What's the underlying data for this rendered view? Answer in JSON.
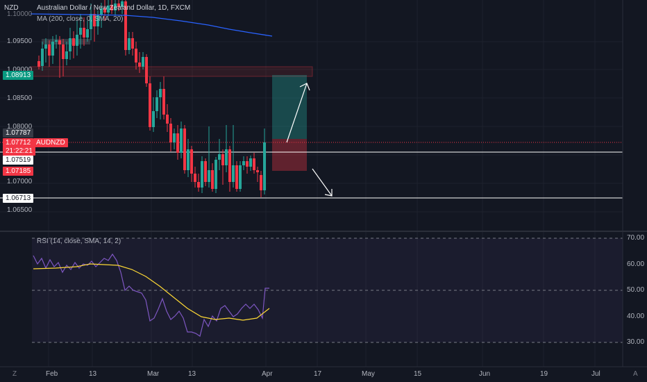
{
  "header": {
    "currency": "NZD",
    "title": "Australian Dollar / New Zealand Dollar, 1D, FXCM",
    "indicator": "MA (200, close, 0, SMA, 20)",
    "top_price": "1.10000"
  },
  "price_axis": {
    "ticks": [
      "1.09500",
      "1.09000",
      "1.08500",
      "1.08000",
      "1.07000",
      "1.06500"
    ]
  },
  "price_labels": {
    "zone_top": "1.08913",
    "ma_level": "1.07787",
    "last": "1.07712",
    "countdown": "21:22:21",
    "symbol": "AUDNZD",
    "support_line": "1.07519",
    "stop_zone": "1.07185",
    "low_line": "1.06713"
  },
  "rsi": {
    "title": "RSI (14, close, SMA, 14, 2)",
    "ticks": [
      "70.00",
      "60.00",
      "50.00",
      "40.00",
      "30.00"
    ]
  },
  "time_axis": {
    "labels": [
      "Feb",
      "13",
      "Mar",
      "13",
      "Apr",
      "17",
      "May",
      "15",
      "Jun",
      "19",
      "Jul"
    ],
    "left_icon": "Z",
    "right_icon": "A"
  },
  "colors": {
    "background": "#131722",
    "bull": "#26a69a",
    "bear": "#f23645",
    "ma": "#2962ff",
    "rsi": "#7e57c2",
    "rsi_ma": "#fdd835"
  }
}
